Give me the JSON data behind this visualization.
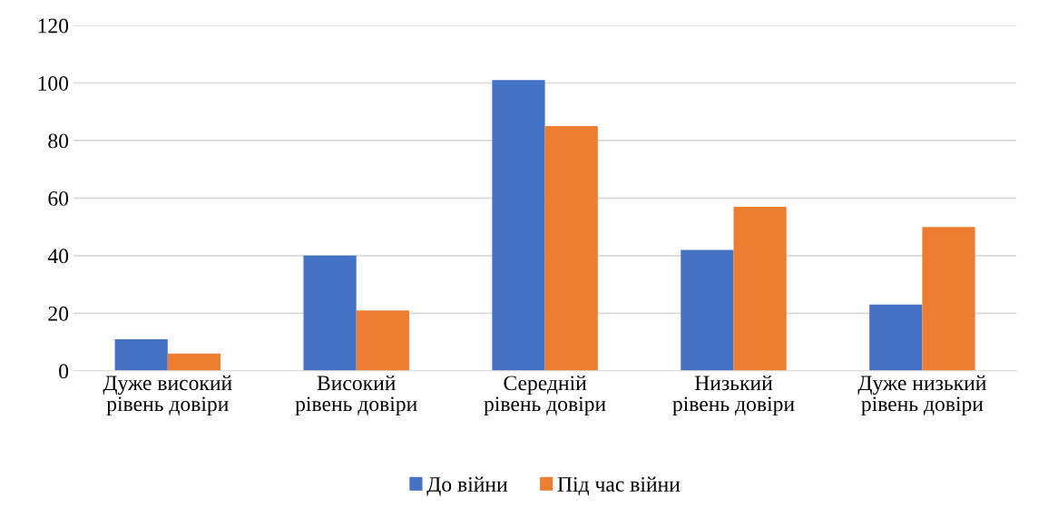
{
  "chart_data": {
    "type": "bar",
    "categories": [
      "Дуже високий рівень довіри",
      "Високий рівень довіри",
      "Середній рівень довіри",
      "Низький рівень довіри",
      "Дуже низький рівень довіри"
    ],
    "series": [
      {
        "name": "До війни",
        "color": "#4472c4",
        "values": [
          11,
          40,
          101,
          42,
          23
        ]
      },
      {
        "name": "Під час війни",
        "color": "#ed7d31",
        "values": [
          6,
          21,
          85,
          57,
          50
        ]
      }
    ],
    "ylim": [
      0,
      120
    ],
    "yticks": [
      0,
      20,
      40,
      60,
      80,
      100,
      120
    ],
    "grid": "y",
    "legend": "bottom"
  }
}
